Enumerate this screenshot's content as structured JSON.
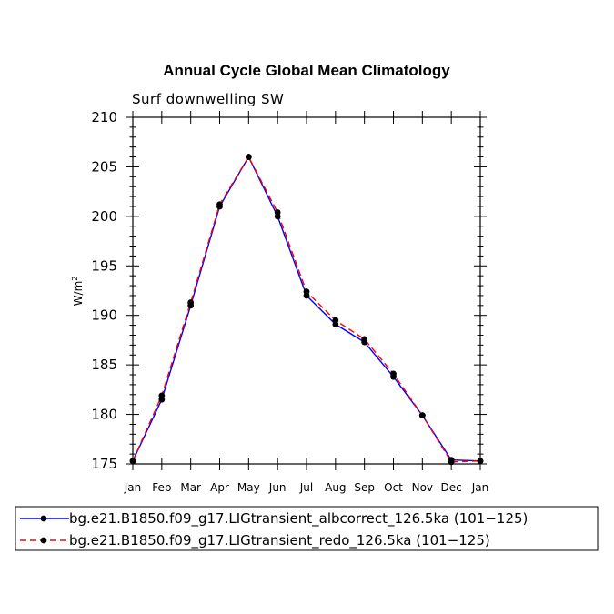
{
  "chart_data": {
    "type": "line",
    "title": "Annual Cycle Global Mean Climatology",
    "subtitle": "Surf downwelling SW",
    "ylabel": "W/m",
    "ylabel_sup": "2",
    "xlabel": "",
    "categories": [
      "Jan",
      "Feb",
      "Mar",
      "Apr",
      "May",
      "Jun",
      "Jul",
      "Aug",
      "Sep",
      "Oct",
      "Nov",
      "Dec",
      "Jan"
    ],
    "ylim": [
      175,
      210
    ],
    "yticks": [
      175,
      180,
      185,
      190,
      195,
      200,
      205,
      210
    ],
    "grid": false,
    "legend_position": "bottom",
    "series": [
      {
        "name": "bg.e21.B1850.f09_g17.LIGtransient_albcorrect_126.5ka (101−125)",
        "color": "#0000ff",
        "dash": "solid",
        "marker": "circle",
        "values": [
          175.3,
          181.5,
          191.0,
          201.0,
          206.0,
          200.0,
          192.0,
          189.1,
          187.3,
          183.8,
          179.9,
          175.4,
          175.3
        ]
      },
      {
        "name": "bg.e21.B1850.f09_g17.LIGtransient_redo_126.5ka (101−125)",
        "color": "#ff0000",
        "dash": "dashed",
        "marker": "circle",
        "values": [
          175.3,
          181.9,
          191.3,
          201.2,
          206.0,
          200.4,
          192.4,
          189.5,
          187.6,
          184.1,
          179.9,
          175.2,
          175.3
        ]
      }
    ]
  }
}
